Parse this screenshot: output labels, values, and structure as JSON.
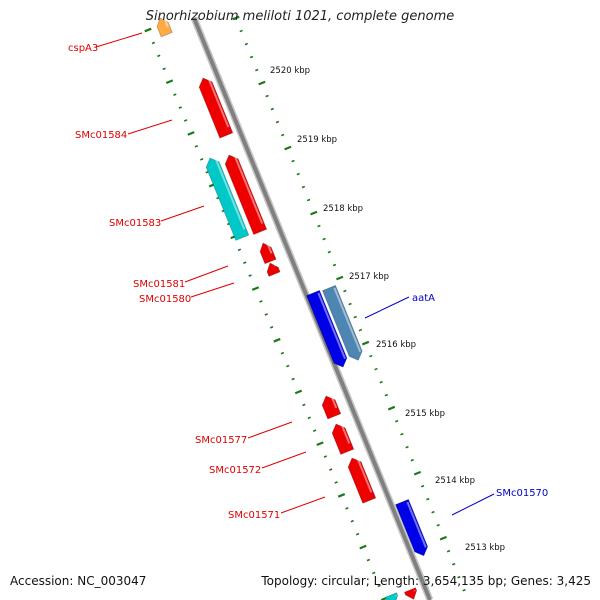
{
  "title": "Sinorhizobium meliloti 1021, complete genome",
  "footer": {
    "accession": "Accession: NC_003047",
    "summary": "Topology: circular; Length: 3,654,135 bp; Genes: 3,425"
  },
  "colors": {
    "backbone": "#808080",
    "tick": "#1a7a1a",
    "gene_red": "#ee0000",
    "gene_cyan": "#00c8c8",
    "gene_blue": "#0000e6",
    "gene_steelblue": "#4d86b3",
    "gene_orange": "#ffaa44",
    "label_red": "#dd0000",
    "label_blue": "#0000cc"
  },
  "ruler": {
    "unit": "kbp",
    "ticks": [
      "2520 kbp",
      "2519 kbp",
      "2518 kbp",
      "2517 kbp",
      "2516 kbp",
      "2515 kbp",
      "2514 kbp",
      "2513 kbp"
    ]
  },
  "genes": [
    {
      "label": "cspA3",
      "strand": "-",
      "color": "orange"
    },
    {
      "label": "SMc01584",
      "strand": "-",
      "color": "red"
    },
    {
      "label": "SMc01583",
      "strand": "-",
      "color": "cyan"
    },
    {
      "label": "",
      "strand": "-",
      "color": "red"
    },
    {
      "label": "SMc01581",
      "strand": "-",
      "color": "red"
    },
    {
      "label": "SMc01580",
      "strand": "-",
      "color": "red"
    },
    {
      "label": "aatA",
      "strand": "+",
      "color": "blue"
    },
    {
      "label": "",
      "strand": "+",
      "color": "steelblue"
    },
    {
      "label": "SMc01577",
      "strand": "-",
      "color": "red"
    },
    {
      "label": "SMc01572",
      "strand": "-",
      "color": "red"
    },
    {
      "label": "SMc01571",
      "strand": "-",
      "color": "red"
    },
    {
      "label": "SMc01570",
      "strand": "+",
      "color": "blue"
    },
    {
      "label": "",
      "strand": "+",
      "color": "cyan"
    },
    {
      "label": "",
      "strand": "+",
      "color": "red"
    }
  ]
}
